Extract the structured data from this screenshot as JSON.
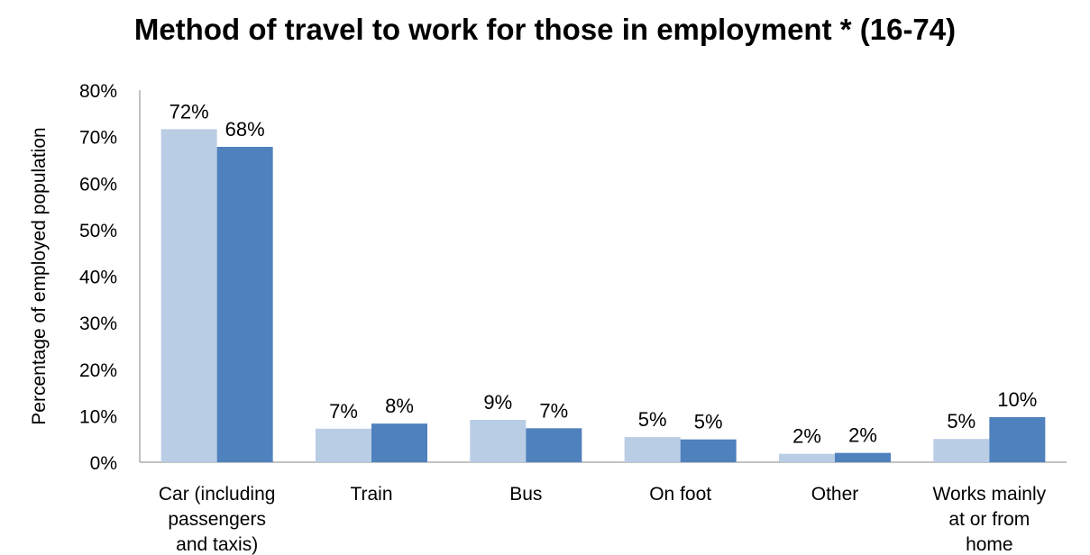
{
  "chart_data": {
    "type": "bar",
    "title": "Method of travel to work for those in employment * (16-74)",
    "ylabel": "Percentage of employed population",
    "xlabel": "",
    "ylim": [
      0,
      80
    ],
    "yticks": [
      "0%",
      "10%",
      "20%",
      "30%",
      "40%",
      "50%",
      "60%",
      "70%",
      "80%"
    ],
    "grid": false,
    "legend": "none",
    "categories": [
      [
        "Car (including",
        "passengers",
        "and taxis)"
      ],
      [
        "Train"
      ],
      [
        "Bus"
      ],
      [
        "On foot"
      ],
      [
        "Other"
      ],
      [
        "Works mainly",
        "at or from",
        "home"
      ]
    ],
    "series": [
      {
        "color": "#b9cde5",
        "values": [
          71.6,
          7.2,
          9.1,
          5.4,
          1.8,
          5.0
        ],
        "labels": [
          "72%",
          "7%",
          "9%",
          "5%",
          "2%",
          "5%"
        ]
      },
      {
        "color": "#4f81bd",
        "values": [
          67.8,
          8.3,
          7.3,
          4.9,
          2.0,
          9.7
        ],
        "labels": [
          "68%",
          "8%",
          "7%",
          "5%",
          "2%",
          "10%"
        ]
      }
    ]
  }
}
